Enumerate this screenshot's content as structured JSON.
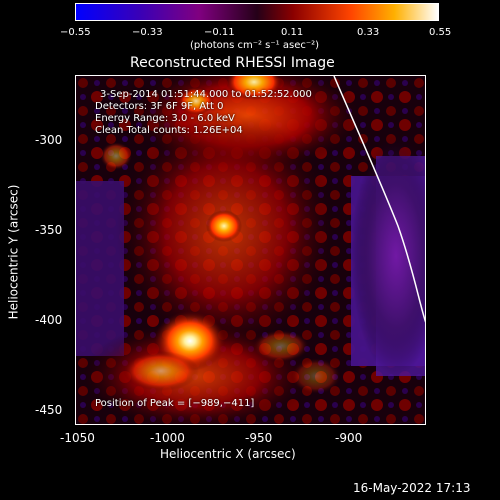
{
  "colorbar": {
    "min_label": "−0.55",
    "ticks": [
      "−0.55",
      "−0.33",
      "−0.11",
      "0.11",
      "0.33",
      "0.55"
    ],
    "units": "(photons cm⁻² s⁻¹ asec⁻²)",
    "colors": {
      "low": "#0000ff",
      "mid_low": "#800080",
      "mid": "#000000",
      "mid_high": "#ff4500",
      "high": "#ffffff"
    }
  },
  "chart_data": {
    "type": "heatmap",
    "title": "Reconstructed RHESSI Image",
    "xlabel": "Heliocentric X (arcsec)",
    "ylabel": "Heliocentric Y (arcsec)",
    "xlim": [
      -1062,
      -862
    ],
    "ylim": [
      -455,
      -258
    ],
    "x_ticks": [
      -1050,
      -1000,
      -950,
      -900
    ],
    "y_ticks": [
      -300,
      -350,
      -400,
      -450
    ],
    "annotations": {
      "time_range": "3-Sep-2014 01:51:44.000 to 01:52:52.000",
      "detectors": "Detectors: 3F 6F 9F, Att 0",
      "energy_range": "Energy Range: 3.0 - 6.0 keV",
      "clean": "Clean    Total counts: 1.26E+04",
      "peak": "Position of Peak = [−989,−411]"
    },
    "features": {
      "peak_position": [
        -989,
        -411
      ],
      "secondary_peak": [
        -975,
        -347
      ],
      "limb_visible": true
    }
  },
  "footer": {
    "timestamp": "16-May-2022 17:13"
  }
}
